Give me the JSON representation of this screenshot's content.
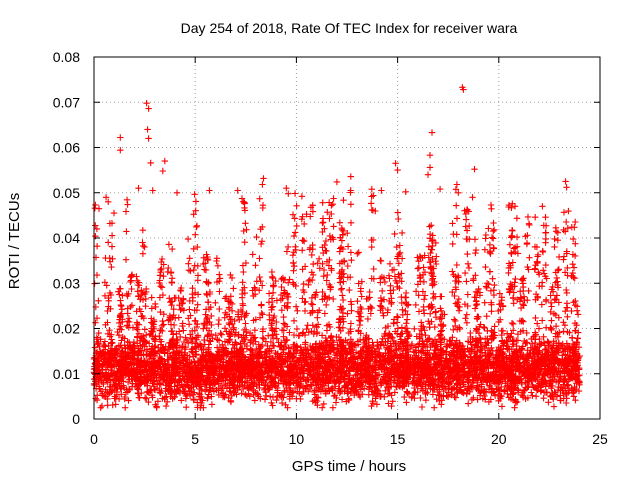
{
  "chart_data": {
    "type": "scatter",
    "title": "Day 254 of 2018, Rate Of TEC Index for receiver wara",
    "xlabel": "GPS time / hours",
    "ylabel": "ROTI / TECUs",
    "xlim": [
      0,
      25
    ],
    "ylim": [
      0,
      0.08
    ],
    "x_ticks": [
      0,
      5,
      10,
      15,
      20,
      25
    ],
    "y_ticks": [
      0,
      0.01,
      0.02,
      0.03,
      0.04,
      0.05,
      0.06,
      0.07,
      0.08
    ],
    "x_tick_labels": [
      "0",
      "5",
      "10",
      "15",
      "20",
      "25"
    ],
    "y_tick_labels": [
      "0",
      "0.01",
      "0.02",
      "0.03",
      "0.04",
      "0.05",
      "0.06",
      "0.07",
      "0.08"
    ],
    "grid": true,
    "marker": "plus",
    "color": "#ff0000",
    "series": [
      {
        "name": "ROTI",
        "x_range": [
          0,
          24
        ],
        "baseline": 0.011,
        "points": [
          {
            "x": 1.3,
            "y": 0.0622
          },
          {
            "x": 1.3,
            "y": 0.0594
          },
          {
            "x": 2.6,
            "y": 0.0698
          },
          {
            "x": 2.7,
            "y": 0.0686
          },
          {
            "x": 2.65,
            "y": 0.064
          },
          {
            "x": 2.7,
            "y": 0.062
          },
          {
            "x": 2.8,
            "y": 0.0566
          },
          {
            "x": 3.5,
            "y": 0.057
          },
          {
            "x": 3.4,
            "y": 0.0548
          },
          {
            "x": 0.6,
            "y": 0.049
          },
          {
            "x": 0.7,
            "y": 0.048
          },
          {
            "x": 2.2,
            "y": 0.051
          },
          {
            "x": 2.9,
            "y": 0.0505
          },
          {
            "x": 4.1,
            "y": 0.05
          },
          {
            "x": 5.7,
            "y": 0.0505
          },
          {
            "x": 7.1,
            "y": 0.0505
          },
          {
            "x": 9.5,
            "y": 0.051
          },
          {
            "x": 9.6,
            "y": 0.0498
          },
          {
            "x": 11.3,
            "y": 0.0478
          },
          {
            "x": 12.0,
            "y": 0.0524
          },
          {
            "x": 14.2,
            "y": 0.0505
          },
          {
            "x": 14.9,
            "y": 0.0565
          },
          {
            "x": 15.0,
            "y": 0.055
          },
          {
            "x": 15.4,
            "y": 0.0502
          },
          {
            "x": 16.7,
            "y": 0.0633
          },
          {
            "x": 16.6,
            "y": 0.0583
          },
          {
            "x": 16.6,
            "y": 0.0556
          },
          {
            "x": 16.5,
            "y": 0.054
          },
          {
            "x": 17.1,
            "y": 0.0508
          },
          {
            "x": 18.2,
            "y": 0.0733
          },
          {
            "x": 18.25,
            "y": 0.0728
          },
          {
            "x": 18.0,
            "y": 0.05
          },
          {
            "x": 18.8,
            "y": 0.0552
          },
          {
            "x": 18.7,
            "y": 0.049
          },
          {
            "x": 20.8,
            "y": 0.047
          },
          {
            "x": 21.8,
            "y": 0.0446
          },
          {
            "x": 23.3,
            "y": 0.0525
          },
          {
            "x": 23.35,
            "y": 0.0512
          },
          {
            "x": 23.2,
            "y": 0.0418
          }
        ]
      }
    ]
  }
}
